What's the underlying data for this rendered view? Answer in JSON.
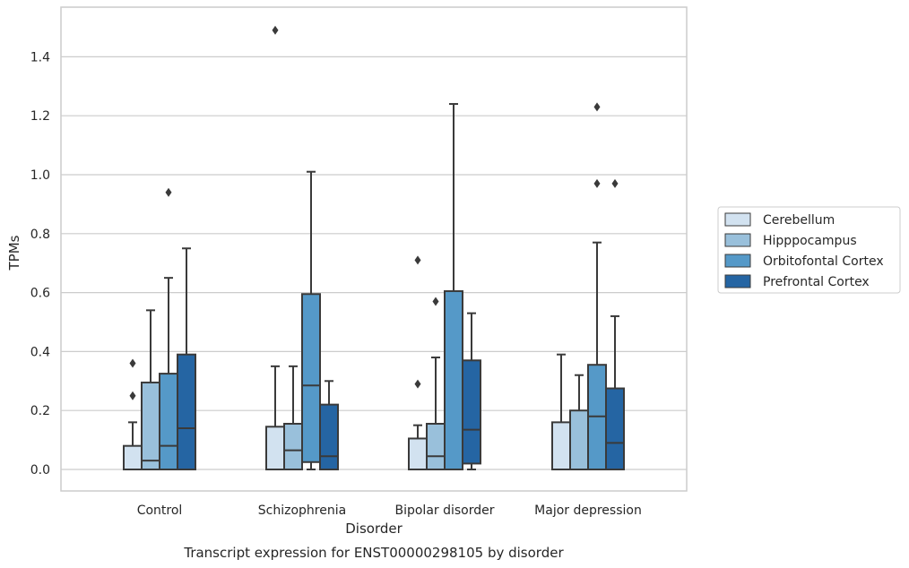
{
  "chart_data": {
    "type": "box",
    "caption": "Transcript expression for ENST00000298105 by disorder",
    "xlabel": "Disorder",
    "ylabel": "TPMs",
    "ylim": [
      -0.07,
      1.56
    ],
    "yticks": [
      "0.0",
      "0.2",
      "0.4",
      "0.6",
      "0.8",
      "1.0",
      "1.2",
      "1.4"
    ],
    "grid": "horizontal",
    "legend_position": "right",
    "categories": [
      "Control",
      "Schizophrenia",
      "Bipolar disorder",
      "Major depression"
    ],
    "series": [
      {
        "name": "Cerebellum",
        "color": "#d2e2f0",
        "boxes": [
          {
            "q1": 0.0,
            "median": 0.0,
            "q3": 0.08,
            "whisker_low": 0.0,
            "whisker_high": 0.16,
            "outliers": [
              0.25,
              0.36
            ]
          },
          {
            "q1": 0.0,
            "median": 0.0,
            "q3": 0.145,
            "whisker_low": 0.0,
            "whisker_high": 0.35,
            "outliers": [
              1.49
            ]
          },
          {
            "q1": 0.0,
            "median": 0.0,
            "q3": 0.105,
            "whisker_low": 0.0,
            "whisker_high": 0.15,
            "outliers": [
              0.29,
              0.71
            ]
          },
          {
            "q1": 0.0,
            "median": 0.0,
            "q3": 0.16,
            "whisker_low": 0.0,
            "whisker_high": 0.39,
            "outliers": []
          }
        ]
      },
      {
        "name": "Hipppocampus",
        "color": "#99c0db",
        "boxes": [
          {
            "q1": 0.0,
            "median": 0.03,
            "q3": 0.295,
            "whisker_low": 0.0,
            "whisker_high": 0.54,
            "outliers": []
          },
          {
            "q1": 0.0,
            "median": 0.065,
            "q3": 0.155,
            "whisker_low": 0.0,
            "whisker_high": 0.35,
            "outliers": []
          },
          {
            "q1": 0.0,
            "median": 0.045,
            "q3": 0.155,
            "whisker_low": 0.0,
            "whisker_high": 0.38,
            "outliers": [
              0.57
            ]
          },
          {
            "q1": 0.0,
            "median": 0.0,
            "q3": 0.2,
            "whisker_low": 0.0,
            "whisker_high": 0.32,
            "outliers": []
          }
        ]
      },
      {
        "name": "Orbitofontal Cortex",
        "color": "#5599c8",
        "boxes": [
          {
            "q1": 0.0,
            "median": 0.08,
            "q3": 0.325,
            "whisker_low": 0.0,
            "whisker_high": 0.65,
            "outliers": [
              0.94
            ]
          },
          {
            "q1": 0.025,
            "median": 0.285,
            "q3": 0.595,
            "whisker_low": 0.0,
            "whisker_high": 1.01,
            "outliers": []
          },
          {
            "q1": 0.0,
            "median": 0.0,
            "q3": 0.605,
            "whisker_low": 0.0,
            "whisker_high": 1.24,
            "outliers": []
          },
          {
            "q1": 0.0,
            "median": 0.18,
            "q3": 0.355,
            "whisker_low": 0.0,
            "whisker_high": 0.77,
            "outliers": [
              0.97,
              1.23
            ]
          }
        ]
      },
      {
        "name": "Prefrontal Cortex",
        "color": "#2565a3",
        "boxes": [
          {
            "q1": 0.0,
            "median": 0.14,
            "q3": 0.39,
            "whisker_low": 0.0,
            "whisker_high": 0.75,
            "outliers": []
          },
          {
            "q1": 0.0,
            "median": 0.045,
            "q3": 0.22,
            "whisker_low": 0.0,
            "whisker_high": 0.3,
            "outliers": []
          },
          {
            "q1": 0.02,
            "median": 0.135,
            "q3": 0.37,
            "whisker_low": 0.0,
            "whisker_high": 0.53,
            "outliers": []
          },
          {
            "q1": 0.0,
            "median": 0.09,
            "q3": 0.275,
            "whisker_low": 0.0,
            "whisker_high": 0.52,
            "outliers": [
              0.97
            ]
          }
        ]
      }
    ]
  }
}
